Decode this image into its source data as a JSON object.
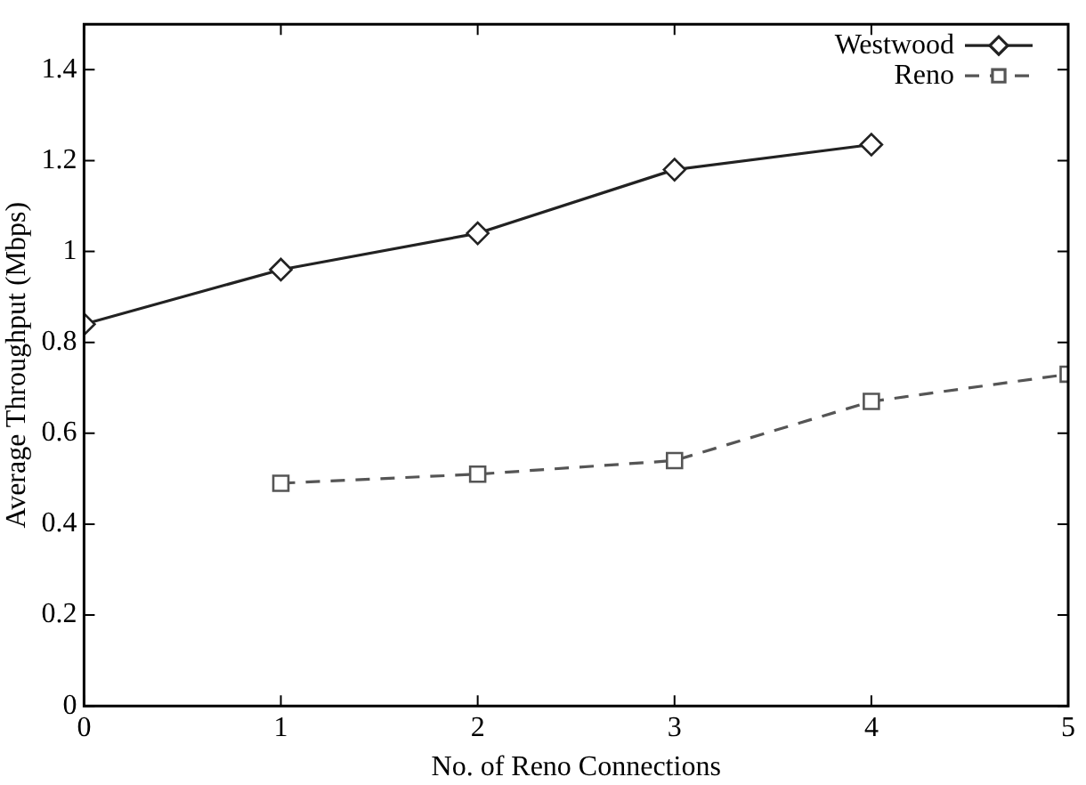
{
  "chart_data": {
    "type": "line",
    "xlabel": "No. of Reno Connections",
    "ylabel": "Average Throughput (Mbps)",
    "xlim": [
      0,
      5
    ],
    "xticks": [
      0,
      1,
      2,
      3,
      4,
      5
    ],
    "ylim": [
      0,
      1.5
    ],
    "yticks": [
      0,
      0.2,
      0.4,
      0.6,
      0.8,
      1,
      1.2,
      1.4
    ],
    "grid": false,
    "legend": "top right",
    "series": [
      {
        "name": "Westwood",
        "color": "#222222",
        "x": [
          0,
          1,
          2,
          3,
          4
        ],
        "values": [
          0.84,
          0.96,
          1.04,
          1.18,
          1.235
        ],
        "marker": "diamond",
        "line_style": "solid"
      },
      {
        "name": "Reno",
        "color": "#555555",
        "x": [
          1,
          2,
          3,
          4,
          5
        ],
        "values": [
          0.49,
          0.51,
          0.54,
          0.67,
          0.73
        ],
        "marker": "square",
        "line_style": "dashed"
      }
    ]
  }
}
